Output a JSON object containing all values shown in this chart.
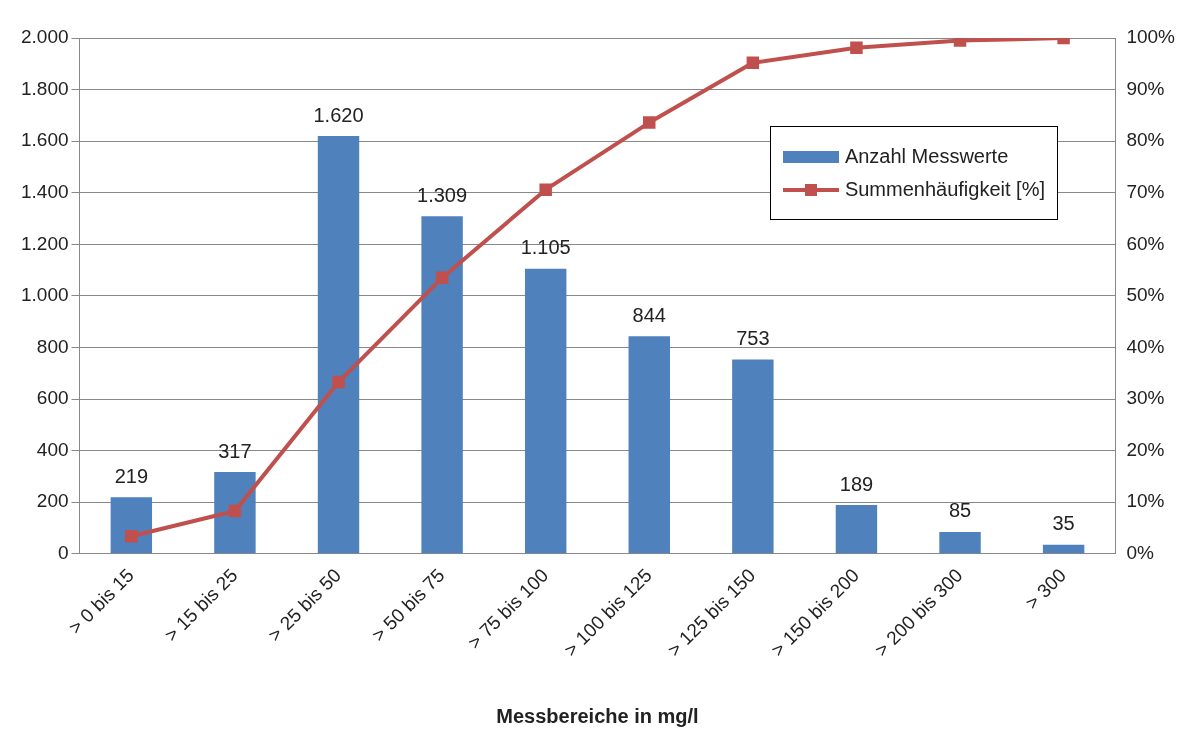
{
  "chart_data": {
    "type": "bar",
    "xlabel": "Messbereiche in mg/l",
    "categories": [
      "> 0 bis 15",
      "> 15 bis 25",
      "> 25 bis 50",
      "> 50 bis 75",
      "> 75 bis 100",
      "> 100 bis 125",
      "> 125 bis 150",
      "> 150 bis 200",
      "> 200 bis 300",
      "> 300"
    ],
    "series": [
      {
        "name": "Anzahl Messwerte",
        "color": "#4f81bd",
        "values": [
          219,
          317,
          1620,
          1309,
          1105,
          844,
          753,
          189,
          85,
          35
        ],
        "value_labels": [
          "219",
          "317",
          "1.620",
          "1.309",
          "1.105",
          "844",
          "753",
          "189",
          "85",
          "35"
        ]
      },
      {
        "name": "Summenhäufigkeit [%]",
        "type": "line",
        "axis": "y2",
        "color": "#c0504d",
        "marker": "square",
        "values": [
          3.4,
          8.3,
          33.3,
          53.5,
          70.6,
          83.6,
          95.2,
          98.1,
          99.5,
          100
        ]
      }
    ],
    "ylim": [
      0,
      2000
    ],
    "yticks": [
      {
        "value": 0,
        "label": "0"
      },
      {
        "value": 200,
        "label": "200"
      },
      {
        "value": 400,
        "label": "400"
      },
      {
        "value": 600,
        "label": "600"
      },
      {
        "value": 800,
        "label": "800"
      },
      {
        "value": 1000,
        "label": "1.000"
      },
      {
        "value": 1200,
        "label": "1.200"
      },
      {
        "value": 1400,
        "label": "1.400"
      },
      {
        "value": 1600,
        "label": "1.600"
      },
      {
        "value": 1800,
        "label": "1.800"
      },
      {
        "value": 2000,
        "label": "2.000"
      }
    ],
    "y2lim": [
      0,
      100
    ],
    "y2ticks": [
      {
        "value": 0,
        "label": "0%"
      },
      {
        "value": 10,
        "label": "10%"
      },
      {
        "value": 20,
        "label": "20%"
      },
      {
        "value": 30,
        "label": "30%"
      },
      {
        "value": 40,
        "label": "40%"
      },
      {
        "value": 50,
        "label": "50%"
      },
      {
        "value": 60,
        "label": "60%"
      },
      {
        "value": 70,
        "label": "70%"
      },
      {
        "value": 80,
        "label": "80%"
      },
      {
        "value": 90,
        "label": "90%"
      },
      {
        "value": 100,
        "label": "100%"
      }
    ],
    "grid": "y",
    "legend": "top right"
  }
}
